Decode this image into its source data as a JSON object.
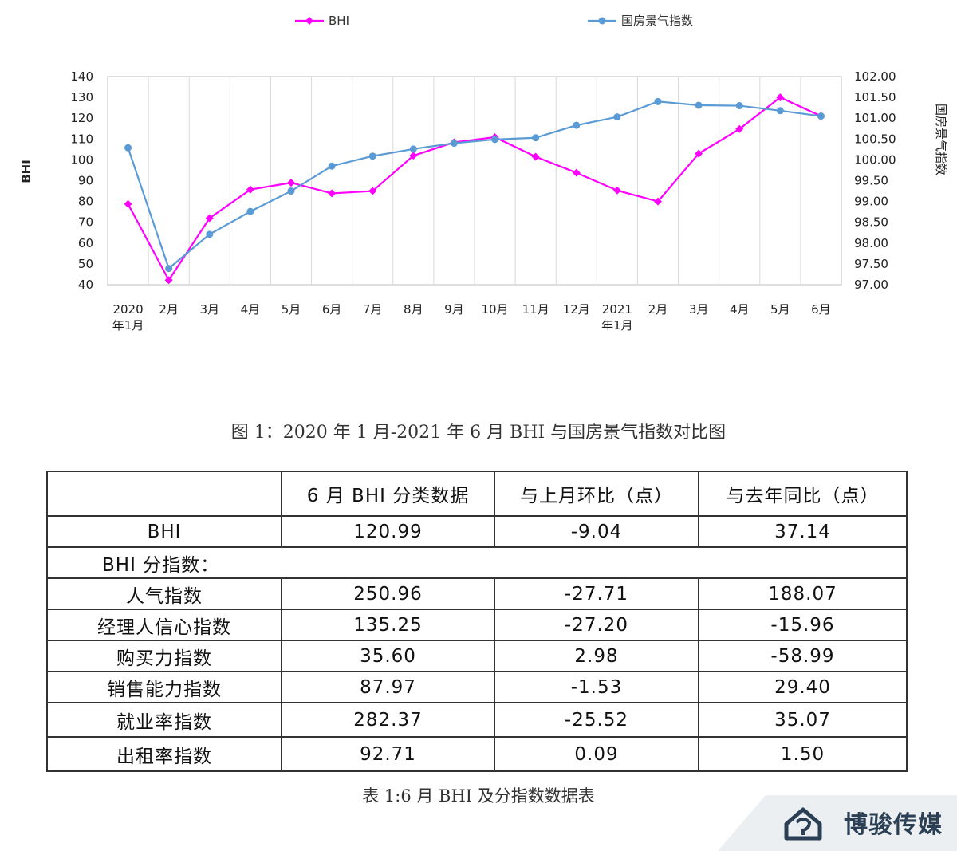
{
  "chart_data": {
    "type": "line",
    "title": "",
    "categories": [
      "2020年1月",
      "2月",
      "3月",
      "4月",
      "5月",
      "6月",
      "7月",
      "8月",
      "9月",
      "10月",
      "11月",
      "12月",
      "2021年1月",
      "2月",
      "3月",
      "4月",
      "5月",
      "6月"
    ],
    "category_labels": [
      [
        "2020",
        "年1月"
      ],
      [
        "2月"
      ],
      [
        "3月"
      ],
      [
        "4月"
      ],
      [
        "5月"
      ],
      [
        "6月"
      ],
      [
        "7月"
      ],
      [
        "8月"
      ],
      [
        "9月"
      ],
      [
        "10月"
      ],
      [
        "11月"
      ],
      [
        "12月"
      ],
      [
        "2021",
        "年1月"
      ],
      [
        "2月"
      ],
      [
        "3月"
      ],
      [
        "4月"
      ],
      [
        "5月"
      ],
      [
        "6月"
      ]
    ],
    "ylabel_left": "BHI",
    "ylabel_right": "国房景气指数",
    "ylim_left": [
      40,
      140
    ],
    "ylim_right": [
      97.0,
      102.0
    ],
    "yticks_left": [
      "40",
      "50",
      "60",
      "70",
      "80",
      "90",
      "100",
      "110",
      "120",
      "130",
      "140"
    ],
    "yticks_right": [
      "97.00",
      "97.50",
      "98.00",
      "98.50",
      "99.00",
      "99.50",
      "100.00",
      "100.50",
      "101.00",
      "101.50",
      "102.00"
    ],
    "grid": "vertical",
    "legend_position": "top",
    "series": [
      {
        "name": "BHI",
        "axis": "left",
        "color": "#ff00ff",
        "marker": "diamond",
        "values": [
          78.8,
          42.2,
          72.0,
          85.7,
          89.0,
          83.9,
          85.0,
          102.0,
          108.4,
          110.9,
          101.5,
          93.8,
          85.3,
          80.0,
          103.0,
          114.8,
          130.0,
          120.99
        ]
      },
      {
        "name": "国房景气指数",
        "axis": "right",
        "color": "#5b9bd5",
        "marker": "circle",
        "values": [
          100.29,
          97.39,
          98.21,
          98.76,
          99.25,
          99.85,
          100.09,
          100.26,
          100.4,
          100.49,
          100.53,
          100.83,
          101.03,
          101.4,
          101.31,
          101.3,
          101.18,
          101.05
        ]
      }
    ]
  },
  "figure_caption": "图 1：2020 年 1 月-2021 年 6 月 BHI 与国房景气指数对比图",
  "table": {
    "headers": [
      "",
      "6 月 BHI 分类数据",
      "与上月环比（点）",
      "与去年同比（点）"
    ],
    "bhi_row": [
      "BHI",
      "120.99",
      "-9.04",
      "37.14"
    ],
    "section_label": "BHI 分指数：",
    "rows": [
      [
        "人气指数",
        "250.96",
        "-27.71",
        "188.07"
      ],
      [
        "经理人信心指数",
        "135.25",
        "-27.20",
        "-15.96"
      ],
      [
        "购买力指数",
        "35.60",
        "2.98",
        "-58.99"
      ],
      [
        "销售能力指数",
        "87.97",
        "-1.53",
        "29.40"
      ],
      [
        "就业率指数",
        "282.37",
        "-25.52",
        "35.07"
      ],
      [
        "出租率指数",
        "92.71",
        "0.09",
        "1.50"
      ]
    ]
  },
  "table_caption": "表 1:6 月 BHI 及分指数数据表",
  "watermark": {
    "text": "博骏传媒",
    "icon": "house-logo-icon"
  }
}
